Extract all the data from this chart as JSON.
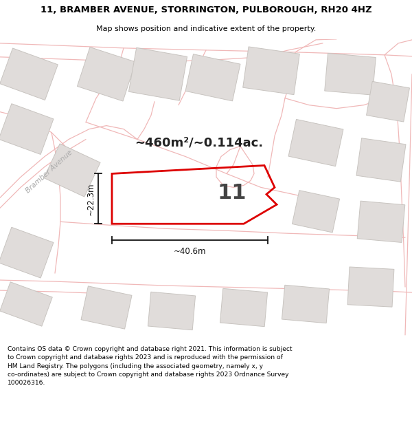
{
  "title_line1": "11, BRAMBER AVENUE, STORRINGTON, PULBOROUGH, RH20 4HZ",
  "title_line2": "Map shows position and indicative extent of the property.",
  "area_text": "~460m²/~0.114ac.",
  "property_number": "11",
  "dim_vertical": "~22.3m",
  "dim_horizontal": "~40.6m",
  "street_label": "Bramber Avenue",
  "footer": "Contains OS data © Crown copyright and database right 2021. This information is subject\nto Crown copyright and database rights 2023 and is reproduced with the permission of\nHM Land Registry. The polygons (including the associated geometry, namely x, y\nco-ordinates) are subject to Crown copyright and database rights 2023 Ordnance Survey\n100026316.",
  "map_bg": "#f8f6f4",
  "road_color": "#f0b8b8",
  "building_color": "#e0dcda",
  "building_edge": "#c8c4c0",
  "property_color": "#dd0000",
  "title_fontsize1": 9.5,
  "title_fontsize2": 8.0
}
